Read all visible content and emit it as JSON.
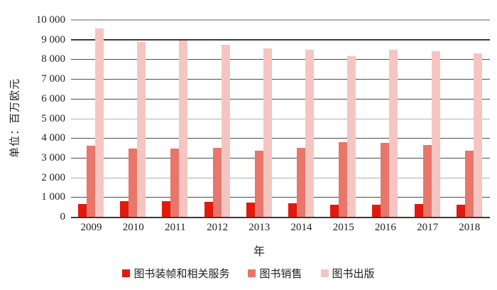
{
  "chart_data": {
    "type": "bar",
    "title": "",
    "categories": [
      "2009",
      "2010",
      "2011",
      "2012",
      "2013",
      "2014",
      "2015",
      "2016",
      "2017",
      "2018"
    ],
    "series": [
      {
        "name": "图书装帧和相关服务",
        "color": "#e2190b",
        "values": [
          660,
          790,
          810,
          750,
          740,
          680,
          620,
          630,
          660,
          620
        ]
      },
      {
        "name": "图书销售",
        "color": "#e8766a",
        "values": [
          3600,
          3480,
          3480,
          3500,
          3350,
          3500,
          3780,
          3750,
          3650,
          3370
        ]
      },
      {
        "name": "图书出版",
        "color": "#f5c6c1",
        "values": [
          9570,
          8870,
          8950,
          8730,
          8560,
          8480,
          8170,
          8480,
          8420,
          8320
        ]
      }
    ],
    "xlabel": "年",
    "ylabel": "单位：百万欧元",
    "ylim": [
      0,
      10000
    ],
    "ytick_step": 1000,
    "ytick_labels": [
      "0",
      "1 000",
      "2 000",
      "3 000",
      "4 000",
      "5 000",
      "6 000",
      "7 000",
      "8 000",
      "9 000",
      "10 000"
    ],
    "grid": true,
    "light_gridlines_at": [
      2000,
      5000,
      10000
    ],
    "heavy_gridline_at": 9000,
    "legend_position": "bottom"
  }
}
